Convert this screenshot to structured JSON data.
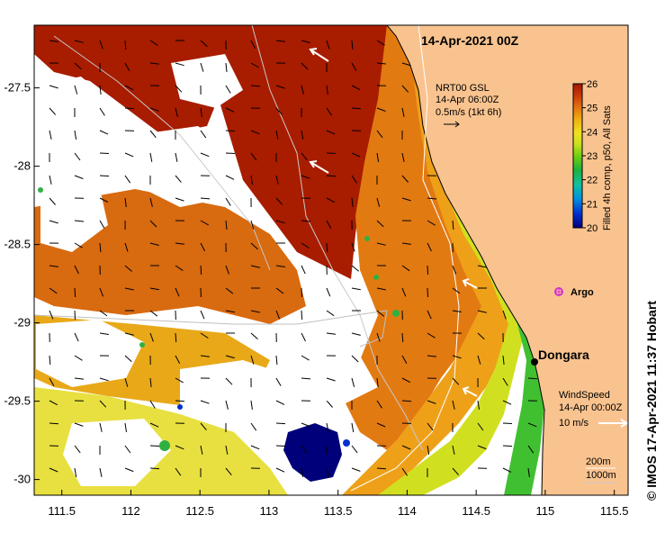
{
  "map": {
    "date_title": "14-Apr-2021 00Z",
    "colorbar": {
      "label": "Filled 4h comp, p50, All Sats",
      "ticks": [
        "26",
        "25",
        "24",
        "23",
        "22",
        "21",
        "20"
      ],
      "min": 20,
      "max": 26,
      "colors": [
        "#00007a",
        "#0030d0",
        "#0090e0",
        "#10c0a0",
        "#20b040",
        "#70d010",
        "#c8e020",
        "#f0e020",
        "#f0b010",
        "#e07010",
        "#c83808",
        "#a01800"
      ]
    },
    "x_ticks": [
      "111.5",
      "112",
      "112.5",
      "113",
      "113.5",
      "114",
      "114.5",
      "115",
      "115.5"
    ],
    "y_ticks": [
      "-27.5",
      "-28",
      "-28.5",
      "-29",
      "-29.5",
      "-30"
    ],
    "lon_range": [
      111.3,
      115.6
    ],
    "lat_range": [
      -27.1,
      -30.1
    ],
    "current_legend": {
      "source": "NRT00 GSL",
      "time": "14-Apr 06:00Z",
      "scale": "0.5m/s (1kt 6h)"
    },
    "wind_legend": {
      "title": "WindSpeed",
      "time": "14-Apr 00:00Z",
      "scale": "10 m/s"
    },
    "isobaths": [
      "200m",
      "1000m"
    ],
    "places": {
      "argo": "Argo",
      "dongara": "Dongara"
    },
    "credit": "© IMOS 17-Apr-2021 11:37 Hobart",
    "colors": {
      "land": "#f9c38f",
      "argo_marker": "#d030d0",
      "current_arrow": "#000000",
      "wind_arrow": "#ffffff"
    }
  }
}
